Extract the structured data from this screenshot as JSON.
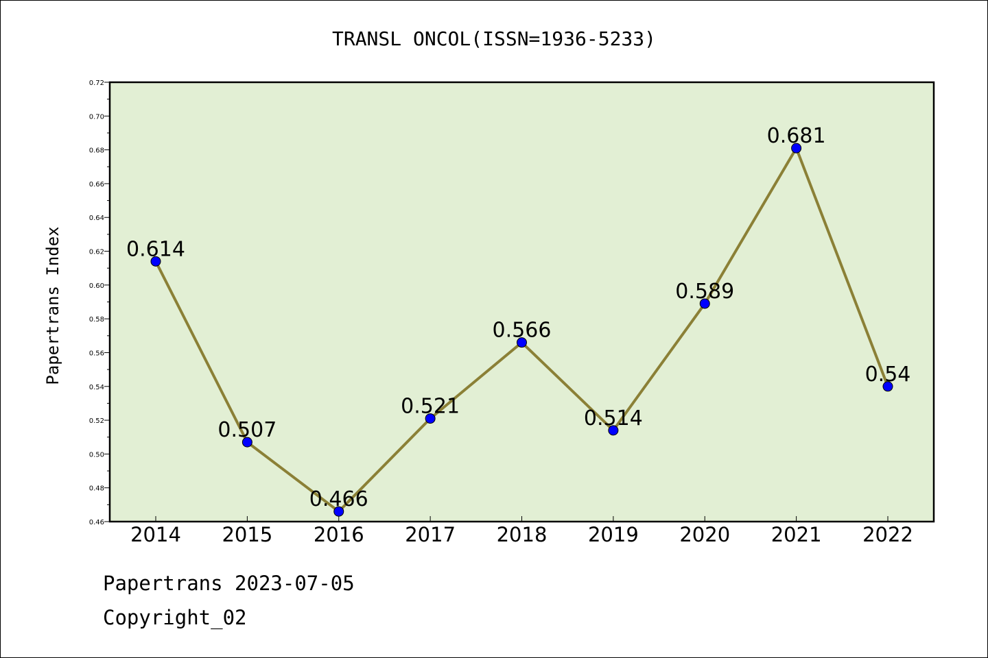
{
  "chart_data": {
    "type": "line",
    "title": "TRANSL ONCOL(ISSN=1936-5233)",
    "xlabel": "",
    "ylabel": "Papertrans Index",
    "categories": [
      "2014",
      "2015",
      "2016",
      "2017",
      "2018",
      "2019",
      "2020",
      "2021",
      "2022"
    ],
    "values": [
      0.614,
      0.507,
      0.466,
      0.521,
      0.566,
      0.514,
      0.589,
      0.681,
      0.54
    ],
    "data_labels": [
      "0.614",
      "0.507",
      "0.466",
      "0.521",
      "0.566",
      "0.514",
      "0.589",
      "0.681",
      "0.54"
    ],
    "ylim": [
      0.46,
      0.72
    ],
    "yticks": [
      0.46,
      0.48,
      0.5,
      0.52,
      0.54,
      0.56,
      0.58,
      0.6,
      0.62,
      0.64,
      0.66,
      0.68,
      0.7,
      0.72
    ],
    "ytick_labels": [
      "0.46",
      "0.48",
      "0.50",
      "0.52",
      "0.54",
      "0.56",
      "0.58",
      "0.60",
      "0.62",
      "0.64",
      "0.66",
      "0.68",
      "0.70",
      "0.72"
    ],
    "grid": false,
    "colors": {
      "plot_background": "#e2efd4",
      "line": "#8b8036",
      "marker": "#0000ff"
    }
  },
  "footer": {
    "line1": "Papertrans 2023-07-05",
    "line2": "Copyright_02"
  }
}
